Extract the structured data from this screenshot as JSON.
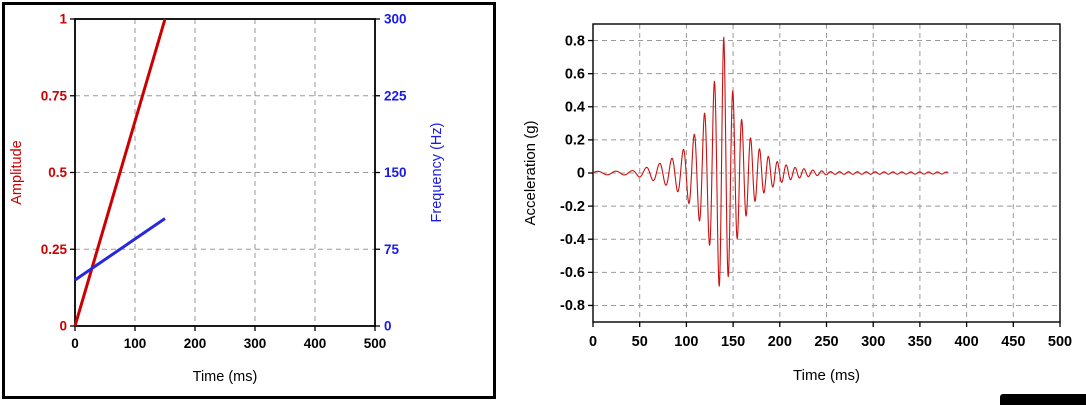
{
  "page": {
    "background": "#ffffff"
  },
  "decor": {
    "left_panel_border_color": "#000000",
    "corner_bar_color": "#000000",
    "grid_color": "#999999"
  },
  "chart_data": [
    {
      "id": "sweep-definition",
      "type": "line",
      "title": "",
      "xlabel": "Time (ms)",
      "xlim": [
        0,
        500
      ],
      "x_ticks": [
        0,
        100,
        200,
        300,
        400,
        500
      ],
      "grid": true,
      "legend": "none",
      "axes": {
        "left": {
          "label": "Amplitude",
          "color": "#cc0000",
          "lim": [
            0,
            1
          ],
          "ticks": [
            0,
            0.25,
            0.5,
            0.75,
            1
          ]
        },
        "right": {
          "label": "Frequency (Hz)",
          "color": "#1a1ae6",
          "lim": [
            0,
            300
          ],
          "ticks": [
            0,
            75,
            150,
            225,
            300
          ]
        }
      },
      "series": [
        {
          "name": "amplitude-ramp",
          "axis": "left",
          "color": "#cc0000",
          "width": 3,
          "points": [
            [
              0,
              0
            ],
            [
              150,
              1
            ]
          ]
        },
        {
          "name": "frequency-ramp",
          "axis": "right",
          "color": "#2828e0",
          "width": 3,
          "points": [
            [
              0,
              45
            ],
            [
              150,
              105
            ]
          ]
        }
      ]
    },
    {
      "id": "acceleration-wavelet",
      "type": "line",
      "title": "",
      "xlabel": "Time (ms)",
      "ylabel": "Acceleration (g)",
      "xlim": [
        0,
        500
      ],
      "ylim": [
        -0.9,
        0.9
      ],
      "x_ticks": [
        0,
        50,
        100,
        150,
        200,
        250,
        300,
        350,
        400,
        450,
        500
      ],
      "y_ticks": [
        -0.8,
        -0.6,
        -0.4,
        -0.2,
        0,
        0.2,
        0.4,
        0.6,
        0.8
      ],
      "grid": true,
      "legend": "none",
      "series": [
        {
          "name": "acceleration",
          "color": "#cc1111",
          "width": 1.1,
          "signal": {
            "kind": "chirp",
            "t_range_ms": [
              0,
              380
            ],
            "freq_hz": {
              "f0": 45,
              "f1": 105,
              "ramp_end_ms": 150
            },
            "peak_g": 0.82,
            "peak_time_ms": 140,
            "envelope_g": [
              [
                0,
                0.01
              ],
              [
                40,
                0.012
              ],
              [
                55,
                0.03
              ],
              [
                70,
                0.055
              ],
              [
                85,
                0.09
              ],
              [
                95,
                0.13
              ],
              [
                105,
                0.2
              ],
              [
                115,
                0.3
              ],
              [
                125,
                0.44
              ],
              [
                132,
                0.6
              ],
              [
                140,
                0.82
              ],
              [
                146,
                0.58
              ],
              [
                153,
                0.42
              ],
              [
                162,
                0.28
              ],
              [
                172,
                0.18
              ],
              [
                185,
                0.11
              ],
              [
                200,
                0.06
              ],
              [
                215,
                0.035
              ],
              [
                235,
                0.018
              ],
              [
                255,
                0.008
              ],
              [
                380,
                0.006
              ]
            ]
          }
        }
      ]
    }
  ]
}
